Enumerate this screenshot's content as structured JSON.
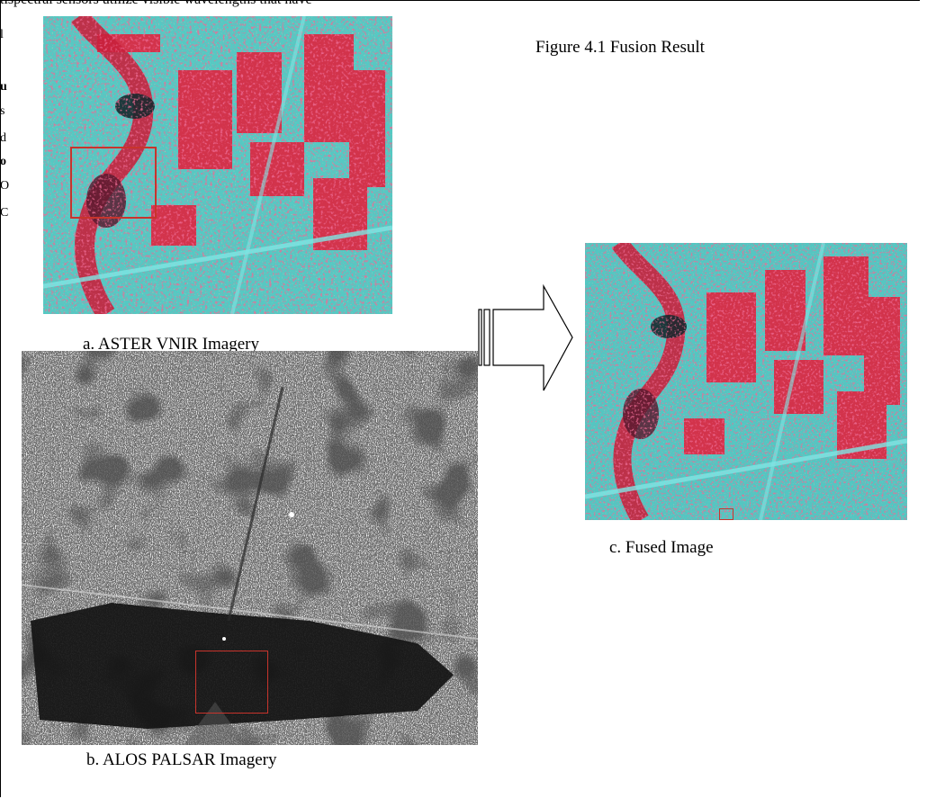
{
  "page": {
    "top_fragment_text": "tispectral sensors utilize visible wavelengths that have",
    "left_fragments": [
      "l",
      "u",
      "s",
      "d",
      "o",
      "O",
      "C"
    ]
  },
  "figure": {
    "title": "Figure 4.1 Fusion Result",
    "panels": [
      {
        "id": "a",
        "caption": "a. ASTER VNIR Imagery",
        "style": "false-color"
      },
      {
        "id": "b",
        "caption": "b. ALOS PALSAR Imagery",
        "style": "grayscale-radar"
      },
      {
        "id": "c",
        "caption": "c. Fused Image",
        "style": "false-color"
      }
    ],
    "arrow_direction": "right"
  },
  "colors": {
    "vegetation_red": "#e0233f",
    "cyan_terrain": "#4fdad8",
    "dark_water": "#17292e",
    "highlight_box": "#c8342c",
    "radar_dark": "#161616",
    "radar_light": "#bdbdbd"
  }
}
